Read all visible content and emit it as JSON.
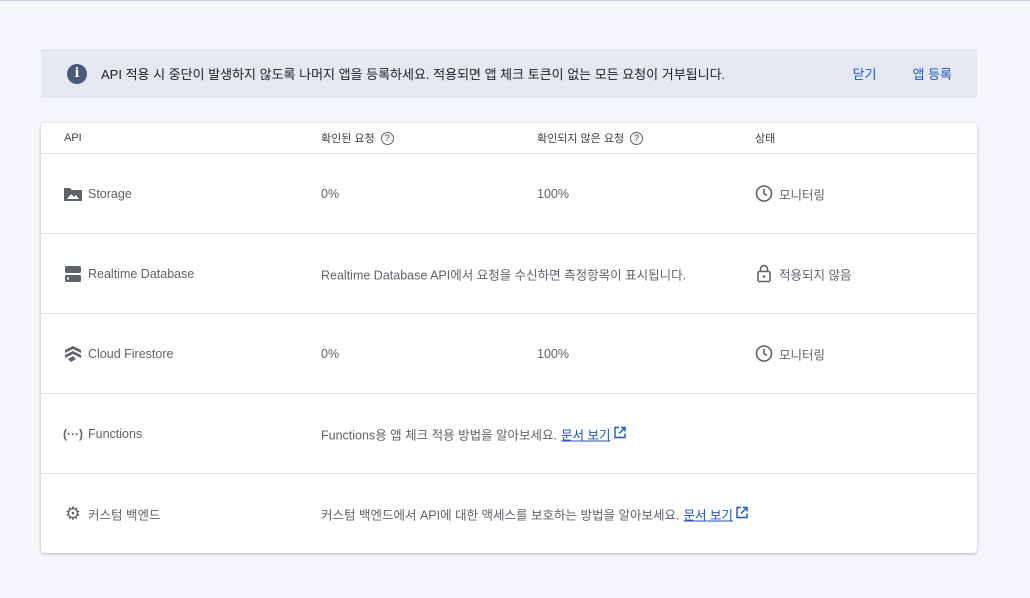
{
  "banner": {
    "message": "API 적용 시 중단이 발생하지 않도록 나머지 앱을 등록하세요. 적용되면 앱 체크 토큰이 없는 모든 요청이 거부됩니다.",
    "close": "닫기",
    "register": "앱 등록"
  },
  "table": {
    "headers": [
      "API",
      "확인된 요청",
      "확인되지 않은 요청",
      "상태"
    ],
    "rows": [
      {
        "name": "Storage",
        "icon": "image-folder-icon",
        "verified": "0%",
        "unverified": "100%",
        "status": "모니터링",
        "status_icon": "clock-icon"
      },
      {
        "name": "Realtime Database",
        "icon": "database-icon",
        "message": "Realtime Database API에서 요청을 수신하면 측정항목이 표시됩니다.",
        "status": "적용되지 않음",
        "status_icon": "unlock-icon"
      },
      {
        "name": "Cloud Firestore",
        "icon": "firestore-icon",
        "verified": "0%",
        "unverified": "100%",
        "status": "모니터링",
        "status_icon": "clock-icon"
      },
      {
        "name": "Functions",
        "icon": "functions-icon",
        "message": "Functions용 앱 체크 적용 방법을 알아보세요.",
        "link": "문서 보기"
      },
      {
        "name": "커스텀 백엔드",
        "icon": "gear-icon",
        "message": "커스텀 백엔드에서 API에 대한 액세스를 보호하는 방법을 알아보세요.",
        "link": "문서 보기"
      }
    ]
  }
}
